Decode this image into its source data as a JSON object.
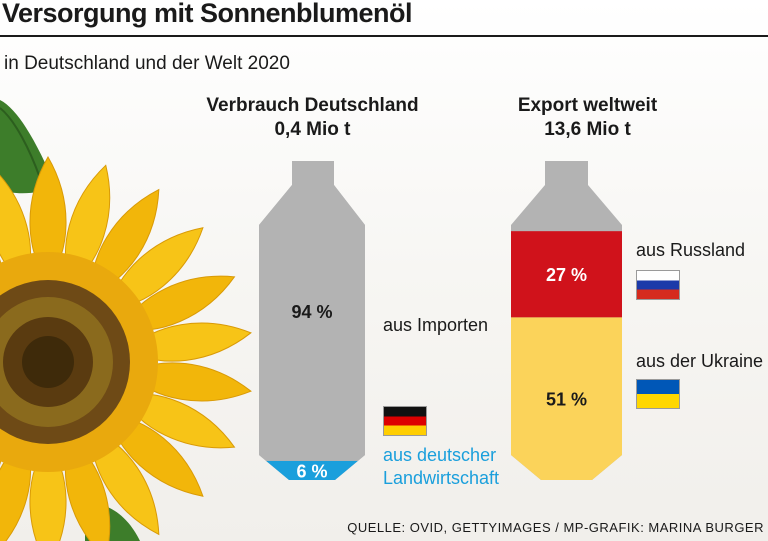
{
  "title": "Versorgung mit Sonnenblumenöl",
  "subtitle": "in Deutschland und der Welt 2020",
  "source": "QUELLE: OVID, GETTYIMAGES / MP-GRAFIK: MARINA BURGER",
  "colors": {
    "bottle_grey": "#b3b3b3",
    "germany_share": "#1a9fdc",
    "russia_share": "#d0121b",
    "ukraine_share": "#fbd35a"
  },
  "chart_data": [
    {
      "type": "bar",
      "title": "Verbrauch Deutschland",
      "total": "0,4 Mio t",
      "series": [
        {
          "name": "aus Importen",
          "value": 94,
          "label": "94 %"
        },
        {
          "name": "aus deutscher Landwirtschaft",
          "value": 6,
          "label": "6 %"
        }
      ],
      "label_lines": [
        "aus deutscher",
        "Landwirtschaft"
      ],
      "flag_icons": [
        "germany-flag-icon"
      ]
    },
    {
      "type": "bar",
      "title": "Export weltweit",
      "total": "13,6 Mio t",
      "series": [
        {
          "name": "aus Russland",
          "value": 27,
          "label": "27 %"
        },
        {
          "name": "aus der Ukraine",
          "value": 51,
          "label": "51 %"
        }
      ],
      "flag_icons": [
        "russia-flag-icon",
        "ukraine-flag-icon"
      ]
    }
  ]
}
